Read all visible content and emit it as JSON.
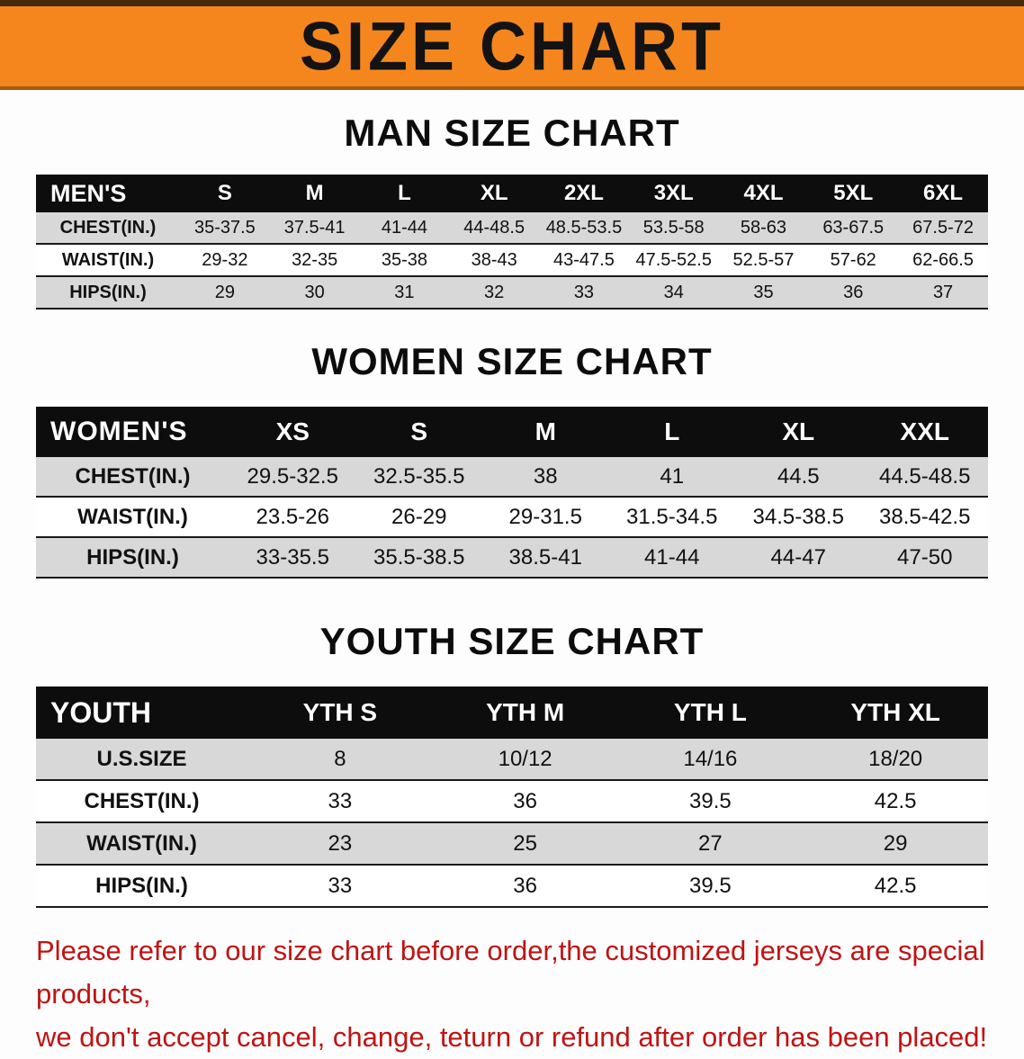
{
  "banner": {
    "title": "SIZE CHART",
    "bg_color": "#F5861E"
  },
  "chart_data": [
    {
      "type": "table",
      "title": "MAN SIZE CHART",
      "corner": "MEN'S",
      "columns": [
        "S",
        "M",
        "L",
        "XL",
        "2XL",
        "3XL",
        "4XL",
        "5XL",
        "6XL"
      ],
      "rows": [
        {
          "label": "CHEST(IN.)",
          "values": [
            "35-37.5",
            "37.5-41",
            "41-44",
            "44-48.5",
            "48.5-53.5",
            "53.5-58",
            "58-63",
            "63-67.5",
            "67.5-72"
          ]
        },
        {
          "label": "WAIST(IN.)",
          "values": [
            "29-32",
            "32-35",
            "35-38",
            "38-43",
            "43-47.5",
            "47.5-52.5",
            "52.5-57",
            "57-62",
            "62-66.5"
          ]
        },
        {
          "label": "HIPS(IN.)",
          "values": [
            "29",
            "30",
            "31",
            "32",
            "33",
            "34",
            "35",
            "36",
            "37"
          ]
        }
      ]
    },
    {
      "type": "table",
      "title": "WOMEN SIZE CHART",
      "corner": "WOMEN'S",
      "columns": [
        "XS",
        "S",
        "M",
        "L",
        "XL",
        "XXL"
      ],
      "rows": [
        {
          "label": "CHEST(IN.)",
          "values": [
            "29.5-32.5",
            "32.5-35.5",
            "38",
            "41",
            "44.5",
            "44.5-48.5"
          ]
        },
        {
          "label": "WAIST(IN.)",
          "values": [
            "23.5-26",
            "26-29",
            "29-31.5",
            "31.5-34.5",
            "34.5-38.5",
            "38.5-42.5"
          ]
        },
        {
          "label": "HIPS(IN.)",
          "values": [
            "33-35.5",
            "35.5-38.5",
            "38.5-41",
            "41-44",
            "44-47",
            "47-50"
          ]
        }
      ]
    },
    {
      "type": "table",
      "title": "YOUTH SIZE CHART",
      "corner": "YOUTH",
      "columns": [
        "YTH S",
        "YTH M",
        "YTH L",
        "YTH XL"
      ],
      "rows": [
        {
          "label": "U.S.SIZE",
          "values": [
            "8",
            "10/12",
            "14/16",
            "18/20"
          ]
        },
        {
          "label": "CHEST(IN.)",
          "values": [
            "33",
            "36",
            "39.5",
            "42.5"
          ]
        },
        {
          "label": "WAIST(IN.)",
          "values": [
            "23",
            "25",
            "27",
            "29"
          ]
        },
        {
          "label": "HIPS(IN.)",
          "values": [
            "33",
            "36",
            "39.5",
            "42.5"
          ]
        }
      ]
    }
  ],
  "footer": {
    "line1": "Please refer to our size chart before order,the customized jerseys are special products,",
    "line2": "we don't accept cancel, change, teturn or refund after order has been placed!",
    "text_color": "#C01313"
  }
}
